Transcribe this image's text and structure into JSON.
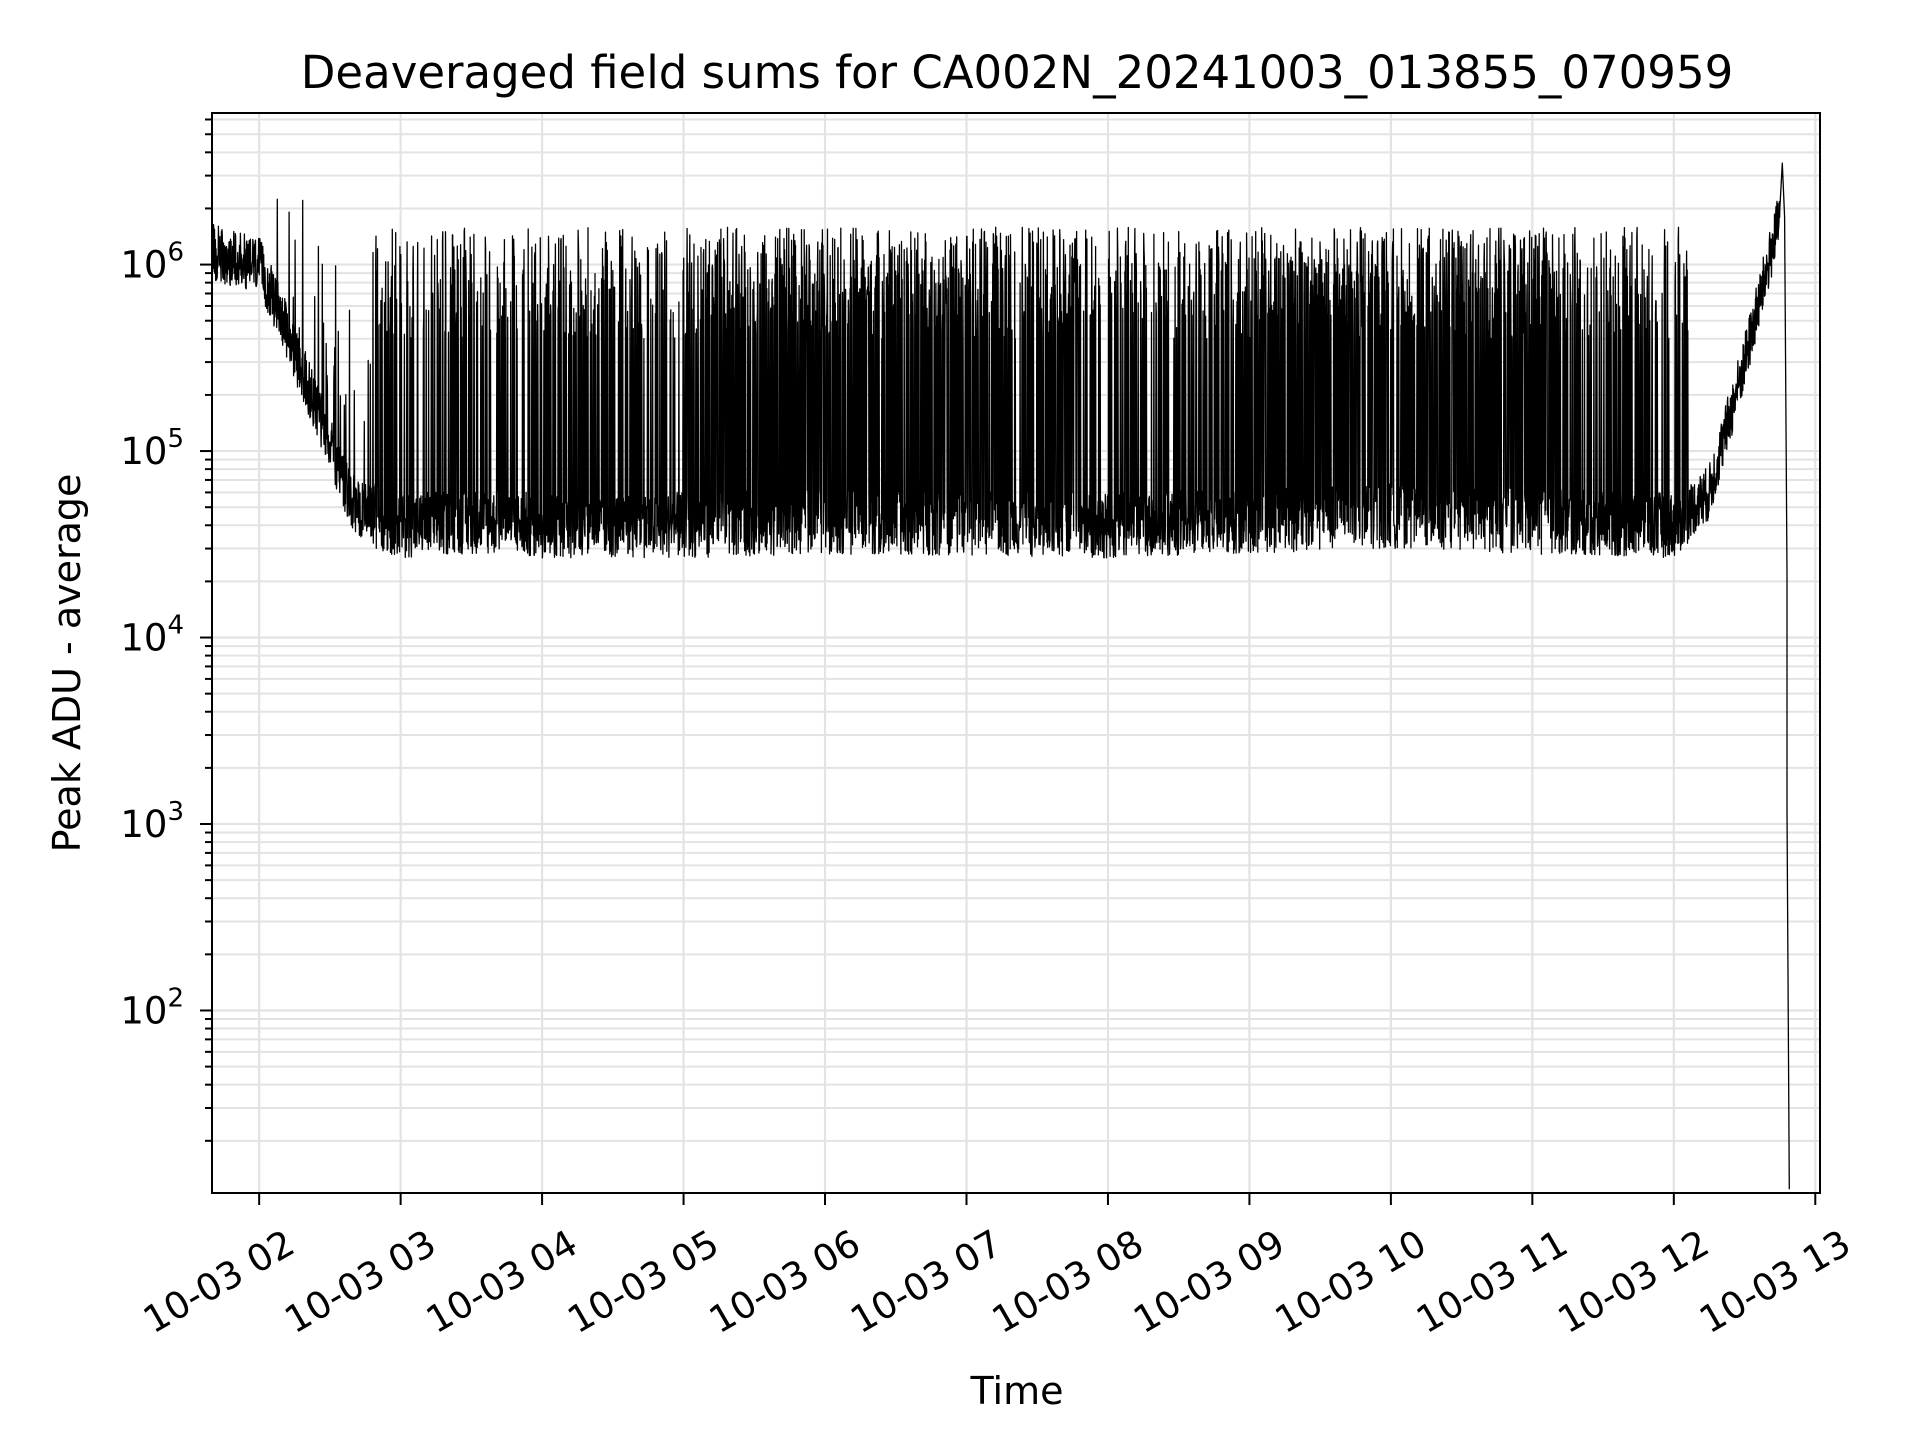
{
  "chart_data": {
    "type": "line",
    "title": "Deaveraged field sums for CA002N_20241003_013855_070959",
    "xlabel": "Time",
    "ylabel": "Peak ADU - average",
    "y_scale": "log",
    "ylim": [
      10.5,
      6500000
    ],
    "xlim": [
      "2024-10-03 01:40",
      "2024-10-03 13:02"
    ],
    "grid": true,
    "line_color": "#000000",
    "x_tick_labels": [
      "10-03 02",
      "10-03 03",
      "10-03 04",
      "10-03 05",
      "10-03 06",
      "10-03 07",
      "10-03 08",
      "10-03 09",
      "10-03 10",
      "10-03 11",
      "10-03 12",
      "10-03 13"
    ],
    "y_tick_labels": [
      {
        "base": "10",
        "exp": "2",
        "value": 100
      },
      {
        "base": "10",
        "exp": "3",
        "value": 1000
      },
      {
        "base": "10",
        "exp": "4",
        "value": 10000
      },
      {
        "base": "10",
        "exp": "5",
        "value": 100000
      },
      {
        "base": "10",
        "exp": "6",
        "value": 1000000
      }
    ],
    "series": [
      {
        "x": [
          "2024-10-03 01:39",
          "2024-10-03 01:45",
          "2024-10-03 02:00",
          "2024-10-03 02:10",
          "2024-10-03 02:30",
          "2024-10-03 02:40",
          "2024-10-03 03:00",
          "2024-10-03 03:30",
          "2024-10-03 04:00",
          "2024-10-03 05:00",
          "2024-10-03 06:00",
          "2024-10-03 07:00",
          "2024-10-03 08:00",
          "2024-10-03 09:00",
          "2024-10-03 10:00",
          "2024-10-03 11:00",
          "2024-10-03 12:00",
          "2024-10-03 12:15",
          "2024-10-03 12:30",
          "2024-10-03 12:40",
          "2024-10-03 12:45",
          "2024-10-03 12:47",
          "2024-10-03 12:48",
          "2024-10-03 12:49"
        ],
        "y": [
          1200000,
          1100000,
          1000000,
          500000,
          110000,
          50000,
          40000,
          42000,
          40000,
          40000,
          42000,
          41000,
          40000,
          42000,
          45000,
          42000,
          40000,
          60000,
          300000,
          1000000,
          1800000,
          22000,
          1200,
          11
        ]
      }
    ]
  }
}
